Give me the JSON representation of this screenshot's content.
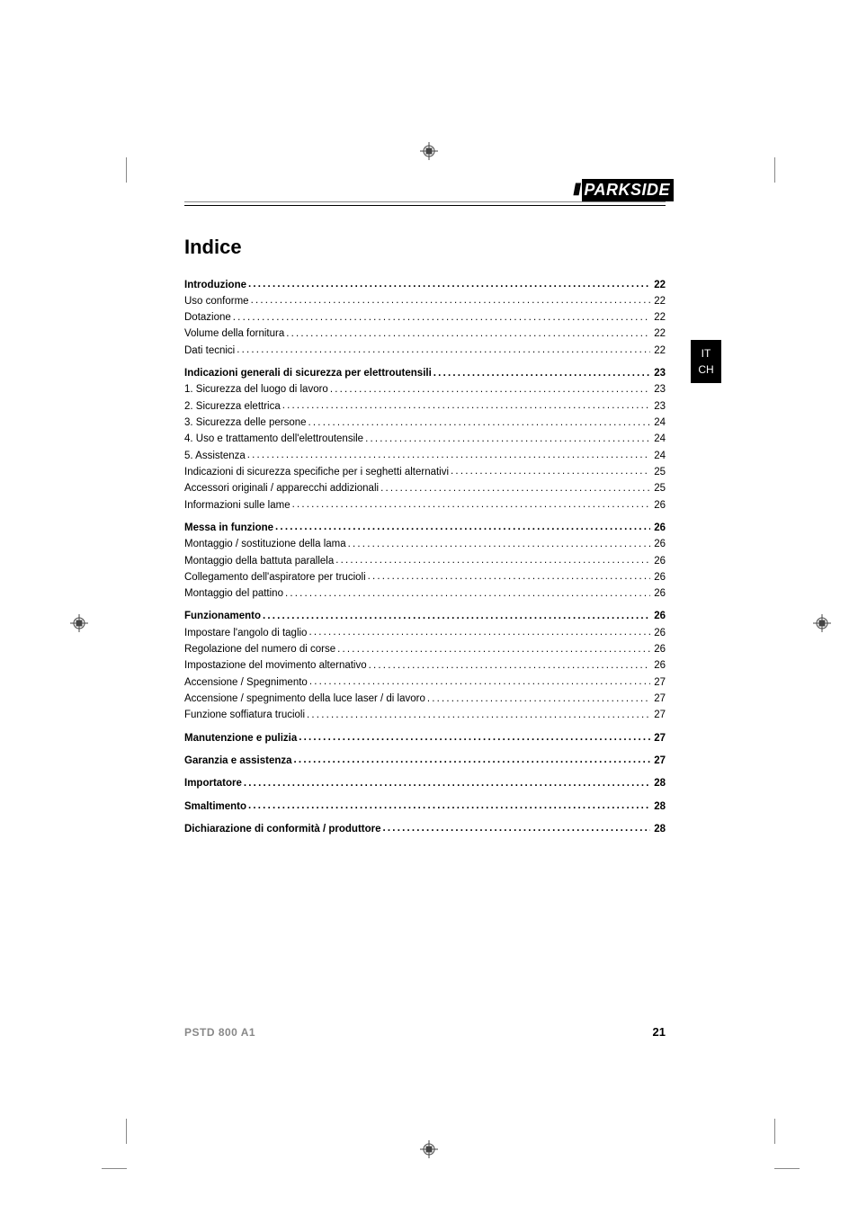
{
  "brand": {
    "slashes": "///",
    "name": "PARKSIDE"
  },
  "lang_tab": {
    "line1": "IT",
    "line2": "CH"
  },
  "title": "Indice",
  "footer": {
    "model": "PSTD 800 A1",
    "page": "21"
  },
  "toc": [
    {
      "heading": {
        "label": "Introduzione",
        "page": "22"
      },
      "items": [
        {
          "label": "Uso conforme",
          "page": "22"
        },
        {
          "label": "Dotazione",
          "page": "22"
        },
        {
          "label": "Volume della fornitura",
          "page": "22"
        },
        {
          "label": "Dati tecnici",
          "page": "22"
        }
      ]
    },
    {
      "heading": {
        "label": "Indicazioni generali di sicurezza per elettroutensili",
        "page": "23"
      },
      "items": [
        {
          "label": "1. Sicurezza del luogo di lavoro",
          "page": "23"
        },
        {
          "label": "2. Sicurezza elettrica",
          "page": "23"
        },
        {
          "label": "3. Sicurezza delle persone",
          "page": "24"
        },
        {
          "label": "4. Uso e trattamento dell'elettroutensile",
          "page": "24"
        },
        {
          "label": "5. Assistenza",
          "page": "24"
        },
        {
          "label": "Indicazioni di sicurezza specifiche per i seghetti alternativi",
          "page": "25"
        },
        {
          "label": "Accessori originali / apparecchi addizionali",
          "page": "25"
        },
        {
          "label": "Informazioni sulle lame",
          "page": "26"
        }
      ]
    },
    {
      "heading": {
        "label": "Messa in funzione",
        "page": "26"
      },
      "items": [
        {
          "label": "Montaggio / sostituzione della lama",
          "page": "26"
        },
        {
          "label": "Montaggio della battuta parallela",
          "page": "26"
        },
        {
          "label": "Collegamento dell'aspiratore per trucioli",
          "page": "26"
        },
        {
          "label": "Montaggio del pattino",
          "page": "26"
        }
      ]
    },
    {
      "heading": {
        "label": "Funzionamento",
        "page": "26"
      },
      "items": [
        {
          "label": "Impostare l'angolo di taglio",
          "page": "26"
        },
        {
          "label": "Regolazione del numero di corse",
          "page": "26"
        },
        {
          "label": "Impostazione del movimento alternativo",
          "page": "26"
        },
        {
          "label": "Accensione / Spegnimento",
          "page": "27"
        },
        {
          "label": "Accensione / spegnimento della luce laser / di lavoro",
          "page": "27"
        },
        {
          "label": "Funzione soffiatura trucioli",
          "page": "27"
        }
      ]
    },
    {
      "heading": {
        "label": "Manutenzione e pulizia",
        "page": "27"
      },
      "items": []
    },
    {
      "heading": {
        "label": "Garanzia e assistenza",
        "page": "27"
      },
      "items": []
    },
    {
      "heading": {
        "label": "Importatore",
        "page": "28"
      },
      "items": []
    },
    {
      "heading": {
        "label": "Smaltimento",
        "page": "28"
      },
      "items": []
    },
    {
      "heading": {
        "label": "Dichiarazione di conformità / produttore",
        "page": "28"
      },
      "items": []
    }
  ]
}
